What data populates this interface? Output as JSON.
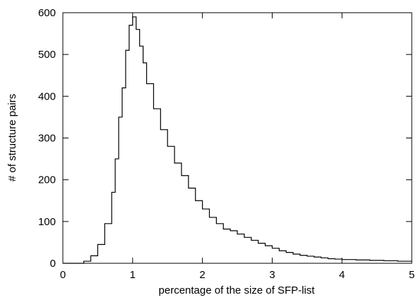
{
  "chart_data": {
    "type": "line",
    "title": "",
    "xlabel": "percentage of the size of SFP-list",
    "ylabel": "# of structure pairs",
    "xlim": [
      0,
      5
    ],
    "ylim": [
      0,
      600
    ],
    "x_ticks": [
      0,
      1,
      2,
      3,
      4,
      5
    ],
    "y_ticks": [
      0,
      100,
      200,
      300,
      400,
      500,
      600
    ],
    "grid": false,
    "legend": "none",
    "step": "histogram",
    "line_color": "#000000",
    "series": [
      {
        "x": [
          0,
          0.2,
          0.3,
          0.4,
          0.5,
          0.6,
          0.7,
          0.75,
          0.8,
          0.85,
          0.9,
          0.95,
          1.0,
          1.05,
          1.1,
          1.15,
          1.2,
          1.3,
          1.4,
          1.5,
          1.6,
          1.7,
          1.8,
          1.9,
          2.0,
          2.1,
          2.2,
          2.3,
          2.4,
          2.5,
          2.6,
          2.7,
          2.8,
          2.9,
          3.0,
          3.1,
          3.2,
          3.3,
          3.4,
          3.5,
          3.6,
          3.7,
          3.8,
          3.9,
          4.0,
          4.2,
          4.4,
          4.6,
          4.8,
          5.0
        ],
        "values": [
          0,
          0,
          5,
          18,
          45,
          95,
          170,
          250,
          350,
          420,
          510,
          570,
          590,
          560,
          520,
          480,
          430,
          370,
          320,
          280,
          240,
          210,
          180,
          150,
          130,
          110,
          95,
          82,
          78,
          70,
          62,
          55,
          48,
          42,
          36,
          30,
          26,
          22,
          19,
          17,
          15,
          13,
          11,
          10,
          9,
          8,
          7,
          6,
          5,
          4
        ]
      }
    ]
  }
}
